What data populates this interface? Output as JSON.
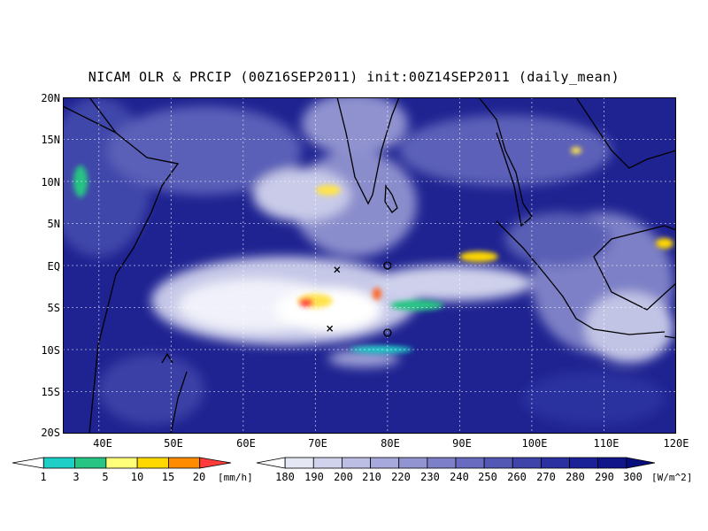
{
  "title": "NICAM OLR & PRCIP (00Z16SEP2011) init:00Z14SEP2011 (daily_mean)",
  "map": {
    "lon_range": [
      35,
      120
    ],
    "lat_range": [
      -20,
      20
    ],
    "lat_labels": [
      "20N",
      "15N",
      "10N",
      "5N",
      "EQ",
      "5S",
      "10S",
      "15S",
      "20S"
    ],
    "lon_labels": [
      "40E",
      "50E",
      "60E",
      "70E",
      "80E",
      "90E",
      "100E",
      "110E",
      "120E"
    ],
    "grid": "dotted",
    "colors": {
      "ocean_deep": "#1a1e8c",
      "ocean_mid": "#3a3fa8",
      "cloud_light": "#d8dcf2",
      "cloud_white": "#ffffff",
      "coast": "#000000"
    },
    "markers": [
      {
        "type": "x",
        "lon": 73,
        "lat": -0.5
      },
      {
        "type": "x",
        "lon": 72,
        "lat": -7.5
      },
      {
        "type": "circle",
        "lon": 80,
        "lat": 0
      },
      {
        "type": "circle",
        "lon": 80,
        "lat": -8
      }
    ]
  },
  "colorbars": {
    "precip": {
      "ticks": [
        "1",
        "3",
        "5",
        "10",
        "15",
        "20"
      ],
      "unit": "[mm/h]",
      "colors": [
        "#ffffff",
        "#1ecfc8",
        "#28c484",
        "#ffff7a",
        "#ffd800",
        "#ff8c00",
        "#ff3b3b"
      ]
    },
    "olr": {
      "ticks": [
        "180",
        "190",
        "200",
        "210",
        "220",
        "230",
        "240",
        "250",
        "260",
        "270",
        "280",
        "290",
        "300"
      ],
      "unit": "[W/m^2]",
      "colors": [
        "#ffffff",
        "#e6e7f5",
        "#d1d3ec",
        "#bcbee4",
        "#a7a9dc",
        "#9294d2",
        "#7d80c9",
        "#686bbf",
        "#5358b5",
        "#3f44aa",
        "#2b31a0",
        "#1b2196",
        "#10168a",
        "#080d7c"
      ]
    }
  }
}
